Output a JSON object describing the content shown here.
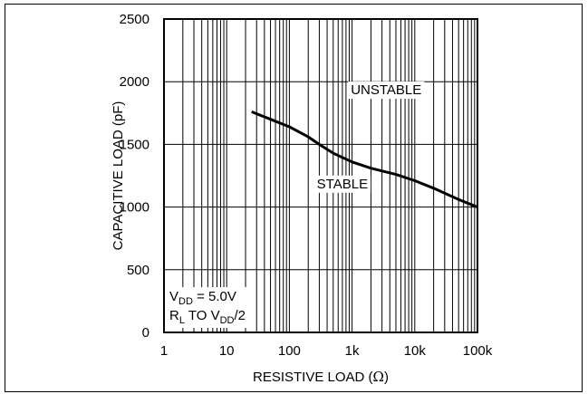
{
  "chart_data": {
    "type": "line",
    "xlabel": "RESISTIVE LOAD (",
    "xlabel_symbol": "Ω",
    "xlabel_close": ")",
    "ylabel": "CAPACITIVE LOAD (pF)",
    "xscale": "log",
    "xlim": [
      1,
      100000
    ],
    "ylim": [
      0,
      2500
    ],
    "grid": true,
    "xticks": [
      {
        "value": 1,
        "label": "1"
      },
      {
        "value": 10,
        "label": "10"
      },
      {
        "value": 100,
        "label": "100"
      },
      {
        "value": 1000,
        "label": "1k"
      },
      {
        "value": 10000,
        "label": "10k"
      },
      {
        "value": 100000,
        "label": "100k"
      }
    ],
    "yticks": [
      {
        "value": 0,
        "label": "0"
      },
      {
        "value": 500,
        "label": "500"
      },
      {
        "value": 1000,
        "label": "1000"
      },
      {
        "value": 1500,
        "label": "1500"
      },
      {
        "value": 2000,
        "label": "2000"
      },
      {
        "value": 2500,
        "label": "2500"
      }
    ],
    "series": [
      {
        "x": [
          25,
          50,
          100,
          200,
          300,
          500,
          1000,
          2000,
          5000,
          10000,
          20000,
          50000,
          100000
        ],
        "values": [
          1760,
          1700,
          1640,
          1560,
          1500,
          1430,
          1360,
          1310,
          1260,
          1210,
          1150,
          1060,
          1000
        ],
        "color": "#000000"
      }
    ],
    "annotations": [
      {
        "text": "UNSTABLE",
        "x": 3500,
        "y": 1900
      },
      {
        "text": "STABLE",
        "x": 700,
        "y": 1150
      }
    ],
    "conditions": [
      {
        "main": "V",
        "sub": "DD",
        "rest": " = 5.0V"
      },
      {
        "main": "R",
        "sub": "L",
        "rest": " TO V",
        "sub2": "DD",
        "rest2": "/2"
      }
    ]
  }
}
